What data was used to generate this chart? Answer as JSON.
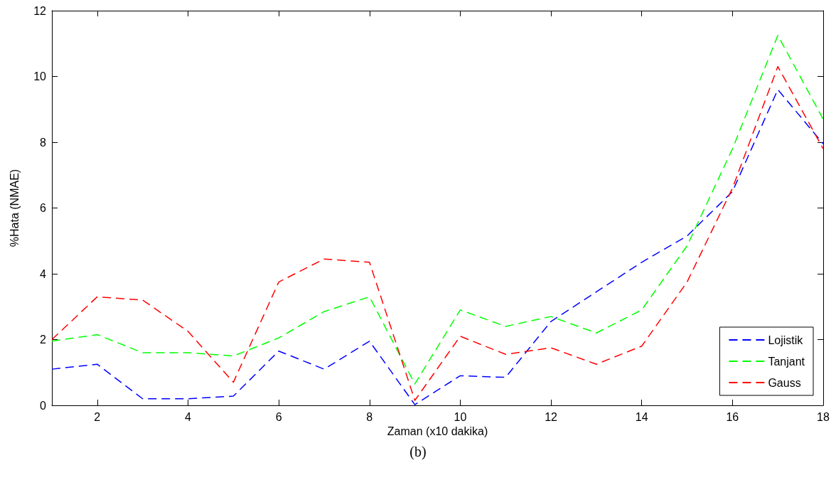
{
  "chart_data": {
    "type": "line",
    "xlabel": "Zaman (x10 dakika)",
    "ylabel": "%Hata (NMAE)",
    "annotations": [
      "(b)"
    ],
    "x": [
      1,
      2,
      3,
      4,
      5,
      6,
      7,
      8,
      9,
      10,
      11,
      12,
      13,
      14,
      15,
      16,
      17,
      18
    ],
    "series": [
      {
        "name": "Lojistik",
        "color": "#0000ff",
        "values": [
          1.1,
          1.25,
          0.2,
          0.2,
          0.28,
          1.65,
          1.1,
          1.95,
          0.02,
          0.9,
          0.85,
          2.55,
          3.45,
          4.35,
          5.15,
          6.5,
          9.6,
          7.95
        ]
      },
      {
        "name": "Tanjant",
        "color": "#00ff00",
        "values": [
          1.95,
          2.15,
          1.6,
          1.6,
          1.5,
          2.05,
          2.85,
          3.3,
          0.65,
          2.9,
          2.4,
          2.7,
          2.2,
          2.9,
          4.85,
          7.8,
          11.25,
          8.7
        ]
      },
      {
        "name": "Gauss",
        "color": "#ff0000",
        "values": [
          2.0,
          3.3,
          3.2,
          2.25,
          0.7,
          3.75,
          4.45,
          4.35,
          0.15,
          2.1,
          1.55,
          1.75,
          1.25,
          1.8,
          3.75,
          6.6,
          10.3,
          7.8
        ]
      }
    ],
    "xlim": [
      1,
      18
    ],
    "xticks": [
      2,
      4,
      6,
      8,
      10,
      12,
      14,
      16,
      18
    ],
    "ylim": [
      0,
      12
    ],
    "yticks": [
      0,
      2,
      4,
      6,
      8,
      10,
      12
    ],
    "grid": false,
    "legend": "bottom right",
    "marker": "none",
    "line_style": "dashed"
  }
}
